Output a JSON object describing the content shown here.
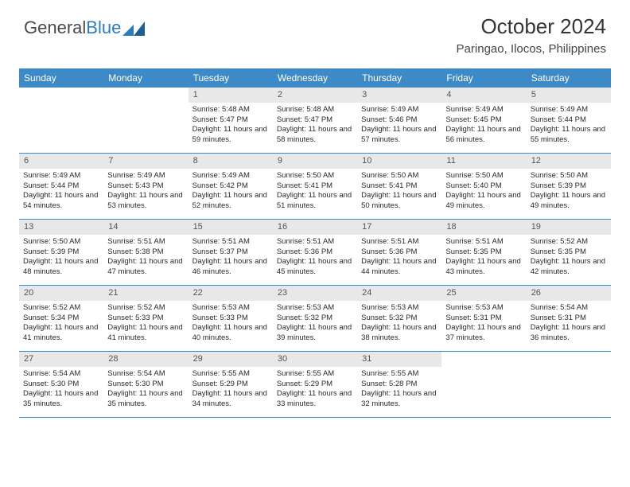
{
  "logo": {
    "part1": "General",
    "part2": "Blue"
  },
  "header": {
    "month_title": "October 2024",
    "location": "Paringao, Ilocos, Philippines"
  },
  "colors": {
    "header_bg": "#3d8ac7",
    "header_text": "#ffffff",
    "daynum_bg": "#e8e8e8",
    "text": "#2b2b2b",
    "border": "#3d8ac7"
  },
  "dow": [
    "Sunday",
    "Monday",
    "Tuesday",
    "Wednesday",
    "Thursday",
    "Friday",
    "Saturday"
  ],
  "weeks": [
    [
      {
        "n": "",
        "sr": "",
        "ss": "",
        "dl": ""
      },
      {
        "n": "",
        "sr": "",
        "ss": "",
        "dl": ""
      },
      {
        "n": "1",
        "sr": "Sunrise: 5:48 AM",
        "ss": "Sunset: 5:47 PM",
        "dl": "Daylight: 11 hours and 59 minutes."
      },
      {
        "n": "2",
        "sr": "Sunrise: 5:48 AM",
        "ss": "Sunset: 5:47 PM",
        "dl": "Daylight: 11 hours and 58 minutes."
      },
      {
        "n": "3",
        "sr": "Sunrise: 5:49 AM",
        "ss": "Sunset: 5:46 PM",
        "dl": "Daylight: 11 hours and 57 minutes."
      },
      {
        "n": "4",
        "sr": "Sunrise: 5:49 AM",
        "ss": "Sunset: 5:45 PM",
        "dl": "Daylight: 11 hours and 56 minutes."
      },
      {
        "n": "5",
        "sr": "Sunrise: 5:49 AM",
        "ss": "Sunset: 5:44 PM",
        "dl": "Daylight: 11 hours and 55 minutes."
      }
    ],
    [
      {
        "n": "6",
        "sr": "Sunrise: 5:49 AM",
        "ss": "Sunset: 5:44 PM",
        "dl": "Daylight: 11 hours and 54 minutes."
      },
      {
        "n": "7",
        "sr": "Sunrise: 5:49 AM",
        "ss": "Sunset: 5:43 PM",
        "dl": "Daylight: 11 hours and 53 minutes."
      },
      {
        "n": "8",
        "sr": "Sunrise: 5:49 AM",
        "ss": "Sunset: 5:42 PM",
        "dl": "Daylight: 11 hours and 52 minutes."
      },
      {
        "n": "9",
        "sr": "Sunrise: 5:50 AM",
        "ss": "Sunset: 5:41 PM",
        "dl": "Daylight: 11 hours and 51 minutes."
      },
      {
        "n": "10",
        "sr": "Sunrise: 5:50 AM",
        "ss": "Sunset: 5:41 PM",
        "dl": "Daylight: 11 hours and 50 minutes."
      },
      {
        "n": "11",
        "sr": "Sunrise: 5:50 AM",
        "ss": "Sunset: 5:40 PM",
        "dl": "Daylight: 11 hours and 49 minutes."
      },
      {
        "n": "12",
        "sr": "Sunrise: 5:50 AM",
        "ss": "Sunset: 5:39 PM",
        "dl": "Daylight: 11 hours and 49 minutes."
      }
    ],
    [
      {
        "n": "13",
        "sr": "Sunrise: 5:50 AM",
        "ss": "Sunset: 5:39 PM",
        "dl": "Daylight: 11 hours and 48 minutes."
      },
      {
        "n": "14",
        "sr": "Sunrise: 5:51 AM",
        "ss": "Sunset: 5:38 PM",
        "dl": "Daylight: 11 hours and 47 minutes."
      },
      {
        "n": "15",
        "sr": "Sunrise: 5:51 AM",
        "ss": "Sunset: 5:37 PM",
        "dl": "Daylight: 11 hours and 46 minutes."
      },
      {
        "n": "16",
        "sr": "Sunrise: 5:51 AM",
        "ss": "Sunset: 5:36 PM",
        "dl": "Daylight: 11 hours and 45 minutes."
      },
      {
        "n": "17",
        "sr": "Sunrise: 5:51 AM",
        "ss": "Sunset: 5:36 PM",
        "dl": "Daylight: 11 hours and 44 minutes."
      },
      {
        "n": "18",
        "sr": "Sunrise: 5:51 AM",
        "ss": "Sunset: 5:35 PM",
        "dl": "Daylight: 11 hours and 43 minutes."
      },
      {
        "n": "19",
        "sr": "Sunrise: 5:52 AM",
        "ss": "Sunset: 5:35 PM",
        "dl": "Daylight: 11 hours and 42 minutes."
      }
    ],
    [
      {
        "n": "20",
        "sr": "Sunrise: 5:52 AM",
        "ss": "Sunset: 5:34 PM",
        "dl": "Daylight: 11 hours and 41 minutes."
      },
      {
        "n": "21",
        "sr": "Sunrise: 5:52 AM",
        "ss": "Sunset: 5:33 PM",
        "dl": "Daylight: 11 hours and 41 minutes."
      },
      {
        "n": "22",
        "sr": "Sunrise: 5:53 AM",
        "ss": "Sunset: 5:33 PM",
        "dl": "Daylight: 11 hours and 40 minutes."
      },
      {
        "n": "23",
        "sr": "Sunrise: 5:53 AM",
        "ss": "Sunset: 5:32 PM",
        "dl": "Daylight: 11 hours and 39 minutes."
      },
      {
        "n": "24",
        "sr": "Sunrise: 5:53 AM",
        "ss": "Sunset: 5:32 PM",
        "dl": "Daylight: 11 hours and 38 minutes."
      },
      {
        "n": "25",
        "sr": "Sunrise: 5:53 AM",
        "ss": "Sunset: 5:31 PM",
        "dl": "Daylight: 11 hours and 37 minutes."
      },
      {
        "n": "26",
        "sr": "Sunrise: 5:54 AM",
        "ss": "Sunset: 5:31 PM",
        "dl": "Daylight: 11 hours and 36 minutes."
      }
    ],
    [
      {
        "n": "27",
        "sr": "Sunrise: 5:54 AM",
        "ss": "Sunset: 5:30 PM",
        "dl": "Daylight: 11 hours and 35 minutes."
      },
      {
        "n": "28",
        "sr": "Sunrise: 5:54 AM",
        "ss": "Sunset: 5:30 PM",
        "dl": "Daylight: 11 hours and 35 minutes."
      },
      {
        "n": "29",
        "sr": "Sunrise: 5:55 AM",
        "ss": "Sunset: 5:29 PM",
        "dl": "Daylight: 11 hours and 34 minutes."
      },
      {
        "n": "30",
        "sr": "Sunrise: 5:55 AM",
        "ss": "Sunset: 5:29 PM",
        "dl": "Daylight: 11 hours and 33 minutes."
      },
      {
        "n": "31",
        "sr": "Sunrise: 5:55 AM",
        "ss": "Sunset: 5:28 PM",
        "dl": "Daylight: 11 hours and 32 minutes."
      },
      {
        "n": "",
        "sr": "",
        "ss": "",
        "dl": ""
      },
      {
        "n": "",
        "sr": "",
        "ss": "",
        "dl": ""
      }
    ]
  ]
}
